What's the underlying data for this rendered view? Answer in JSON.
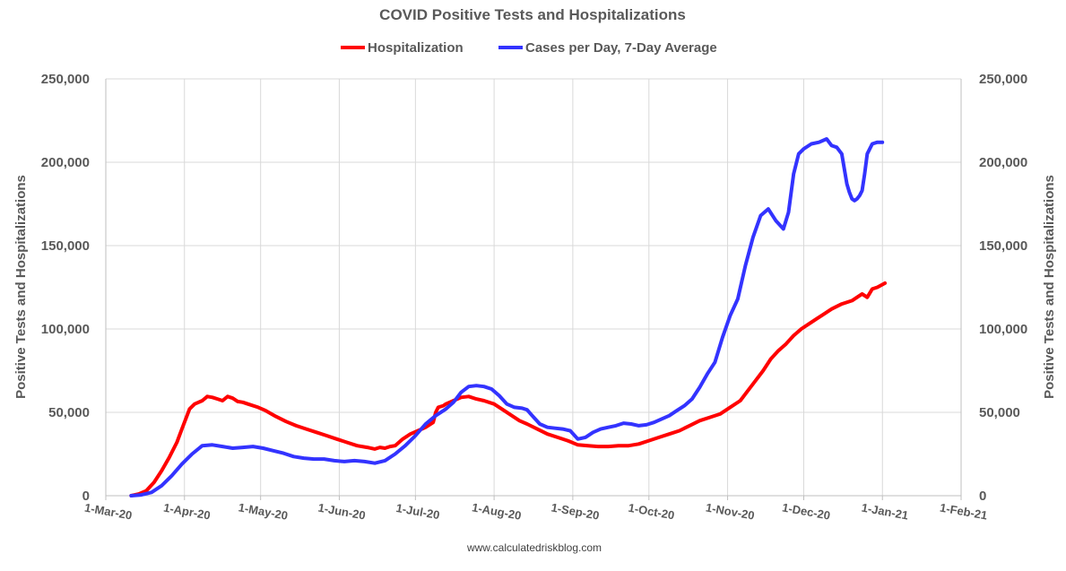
{
  "chart_data": {
    "type": "line",
    "title": "COVID Positive Tests and Hospitalizations",
    "ylabel_left": "Positive Tests and Hospitalizations",
    "ylabel_right": "Positive Tests and Hospitalizations",
    "ylim": [
      0,
      250000
    ],
    "y_ticks": [
      0,
      50000,
      100000,
      150000,
      200000,
      250000
    ],
    "y_tick_labels": [
      "0",
      "50,000",
      "100,000",
      "150,000",
      "200,000",
      "250,000"
    ],
    "x_day_range": [
      0,
      337
    ],
    "x_ticks": [
      0,
      31,
      61,
      92,
      122,
      153,
      184,
      214,
      245,
      275,
      306,
      337
    ],
    "x_tick_labels": [
      "1-Mar-20",
      "1-Apr-20",
      "1-May-20",
      "1-Jun-20",
      "1-Jul-20",
      "1-Aug-20",
      "1-Sep-20",
      "1-Oct-20",
      "1-Nov-20",
      "1-Dec-20",
      "1-Jan-21",
      "1-Feb-21"
    ],
    "legend_position": "top-center",
    "footer": "www.calculatedriskblog.com",
    "series": [
      {
        "name": "Hospitalization",
        "color": "#ff0000",
        "x": [
          10,
          13,
          16,
          19,
          22,
          25,
          28,
          30,
          32,
          33,
          35,
          38,
          40,
          42,
          44,
          46,
          48,
          50,
          52,
          54,
          56,
          60,
          63,
          67,
          71,
          75,
          79,
          83,
          87,
          91,
          95,
          99,
          103,
          106,
          108,
          110,
          112,
          114,
          117,
          120,
          123,
          126,
          129,
          130,
          131,
          133,
          134,
          137,
          140,
          143,
          146,
          149,
          153,
          157,
          160,
          163,
          166,
          170,
          174,
          178,
          182,
          186,
          190,
          194,
          198,
          202,
          206,
          210,
          214,
          218,
          222,
          226,
          230,
          234,
          238,
          242,
          246,
          250,
          253,
          256,
          259,
          262,
          265,
          268,
          271,
          274,
          277,
          280,
          283,
          286,
          290,
          294,
          296,
          298,
          300,
          302,
          304,
          307
        ],
        "values": [
          0,
          1000,
          3000,
          8000,
          15000,
          23000,
          32000,
          40000,
          48000,
          52000,
          55000,
          57000,
          59500,
          59000,
          58000,
          57000,
          59500,
          58500,
          56500,
          56000,
          55000,
          53000,
          51000,
          47500,
          44500,
          42000,
          40000,
          38000,
          36000,
          34000,
          32000,
          30000,
          29000,
          28000,
          29000,
          28500,
          29500,
          30000,
          34000,
          37000,
          39000,
          41000,
          44000,
          50000,
          53000,
          54000,
          55000,
          57000,
          59000,
          59500,
          58000,
          57000,
          55000,
          51000,
          48000,
          45000,
          43000,
          40000,
          37000,
          35000,
          33000,
          30500,
          30000,
          29500,
          29500,
          30000,
          30000,
          31000,
          33000,
          35000,
          37000,
          39000,
          42000,
          45000,
          47000,
          49000,
          53000,
          57000,
          63000,
          69000,
          75000,
          82000,
          87000,
          91000,
          96000,
          100000,
          103000,
          106000,
          109000,
          112000,
          115000,
          117000,
          119000,
          121000,
          119000,
          124000,
          125000,
          127500
        ]
      },
      {
        "name": "Cases per Day, 7-Day Average",
        "color": "#3333ff",
        "x": [
          10,
          14,
          18,
          22,
          26,
          30,
          34,
          38,
          42,
          46,
          50,
          54,
          58,
          62,
          66,
          70,
          74,
          78,
          82,
          86,
          90,
          94,
          98,
          102,
          106,
          110,
          114,
          118,
          122,
          126,
          130,
          134,
          137,
          140,
          143,
          146,
          149,
          152,
          155,
          158,
          161,
          164,
          166,
          168,
          171,
          174,
          177,
          180,
          183,
          186,
          189,
          192,
          195,
          198,
          201,
          204,
          207,
          210,
          213,
          216,
          219,
          222,
          225,
          228,
          231,
          234,
          237,
          240,
          243,
          246,
          249,
          252,
          255,
          258,
          261,
          264,
          267,
          269,
          271,
          273,
          275,
          278,
          281,
          284,
          286,
          288,
          290,
          292,
          293,
          294,
          295,
          296,
          297,
          298,
          299,
          300,
          302,
          304,
          305,
          306
        ],
        "values": [
          0,
          500,
          2000,
          6000,
          12000,
          19000,
          25000,
          30000,
          30500,
          29500,
          28500,
          29000,
          29500,
          28500,
          27000,
          25500,
          23500,
          22500,
          22000,
          22000,
          21000,
          20500,
          21000,
          20500,
          19500,
          21000,
          25000,
          30000,
          36000,
          43000,
          48000,
          52000,
          56000,
          62000,
          65500,
          66000,
          65500,
          64000,
          60000,
          55000,
          53000,
          52500,
          51500,
          48000,
          43000,
          41000,
          40500,
          40000,
          39000,
          34000,
          35000,
          38000,
          40000,
          41000,
          42000,
          43500,
          43000,
          42000,
          42500,
          44000,
          46000,
          48000,
          51000,
          54000,
          58000,
          65000,
          73000,
          80000,
          95000,
          108000,
          118000,
          138000,
          155000,
          168000,
          172000,
          165000,
          160000,
          170000,
          193000,
          205000,
          208000,
          211000,
          212000,
          214000,
          210000,
          209000,
          205000,
          187000,
          182000,
          178000,
          177000,
          178000,
          180000,
          183000,
          193000,
          205000,
          211000,
          212000,
          212000,
          212000
        ]
      }
    ]
  }
}
